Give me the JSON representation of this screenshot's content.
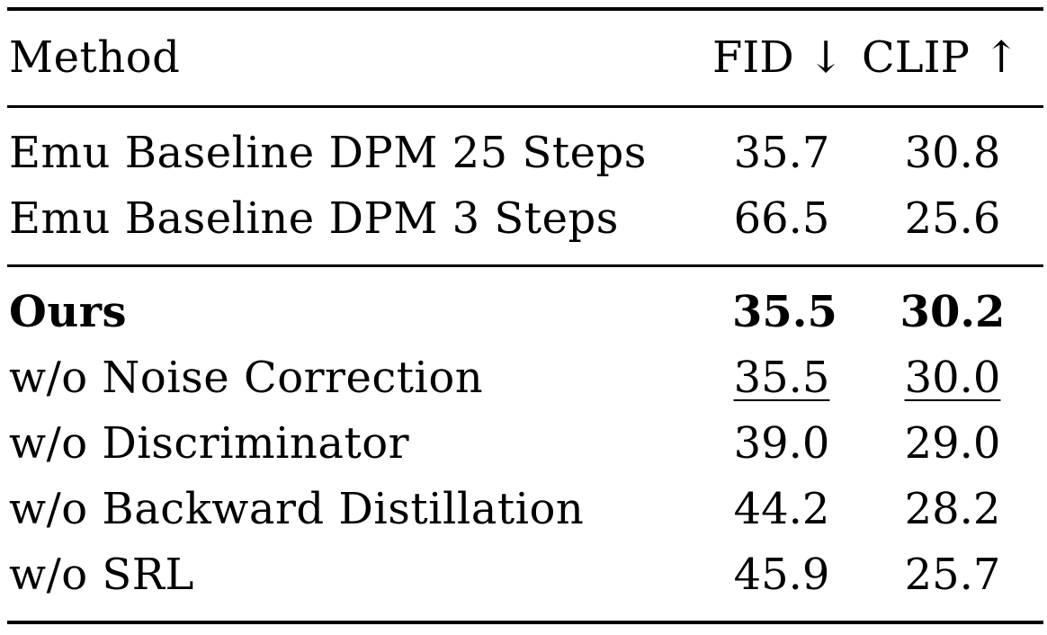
{
  "table": {
    "header": {
      "method": "Method",
      "fid": "FID ↓",
      "clip": "CLIP ↑"
    },
    "baselines": [
      {
        "method": "Emu Baseline DPM 25 Steps",
        "fid": "35.7",
        "clip": "30.8"
      },
      {
        "method": "Emu Baseline DPM 3 Steps",
        "fid": "66.5",
        "clip": "25.6"
      }
    ],
    "ablations": [
      {
        "method": "Ours",
        "fid": "35.5",
        "clip": "30.2",
        "style": "bold"
      },
      {
        "method": "w/o Noise Correction",
        "fid": "35.5",
        "clip": "30.0",
        "style": "underline"
      },
      {
        "method": "w/o Discriminator",
        "fid": "39.0",
        "clip": "29.0",
        "style": "normal"
      },
      {
        "method": "w/o Backward Distillation",
        "fid": "44.2",
        "clip": "28.2",
        "style": "normal"
      },
      {
        "method": "w/o SRL",
        "fid": "45.9",
        "clip": "25.7",
        "style": "normal"
      }
    ]
  }
}
